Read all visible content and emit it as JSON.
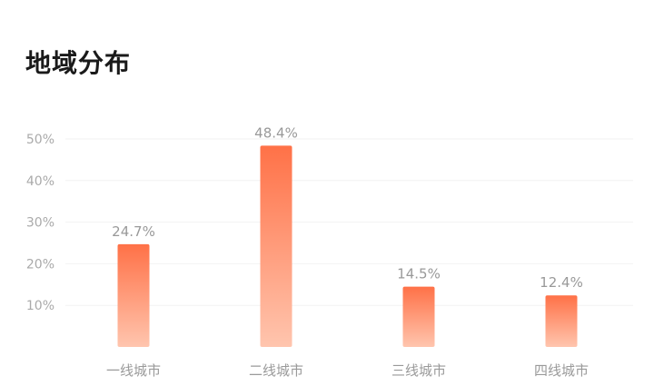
{
  "chart_data": {
    "type": "bar",
    "title": "地域分布",
    "categories": [
      "一线城市",
      "二线城市",
      "三线城市",
      "四线城市"
    ],
    "values": [
      24.7,
      48.4,
      14.5,
      12.4
    ],
    "data_labels": [
      "24.7%",
      "48.4%",
      "14.5%",
      "12.4%"
    ],
    "yticks": [
      10,
      20,
      30,
      40,
      50
    ],
    "ytick_labels": [
      "10%",
      "20%",
      "30%",
      "40%",
      "50%"
    ],
    "ylim": [
      0,
      50
    ],
    "xlabel": "",
    "ylabel": "",
    "grid": true,
    "legend": "none",
    "colors": {
      "bar_top": "#ff7147",
      "bar_bottom": "#ffc5ae",
      "grid": "#f2f2f2"
    }
  }
}
